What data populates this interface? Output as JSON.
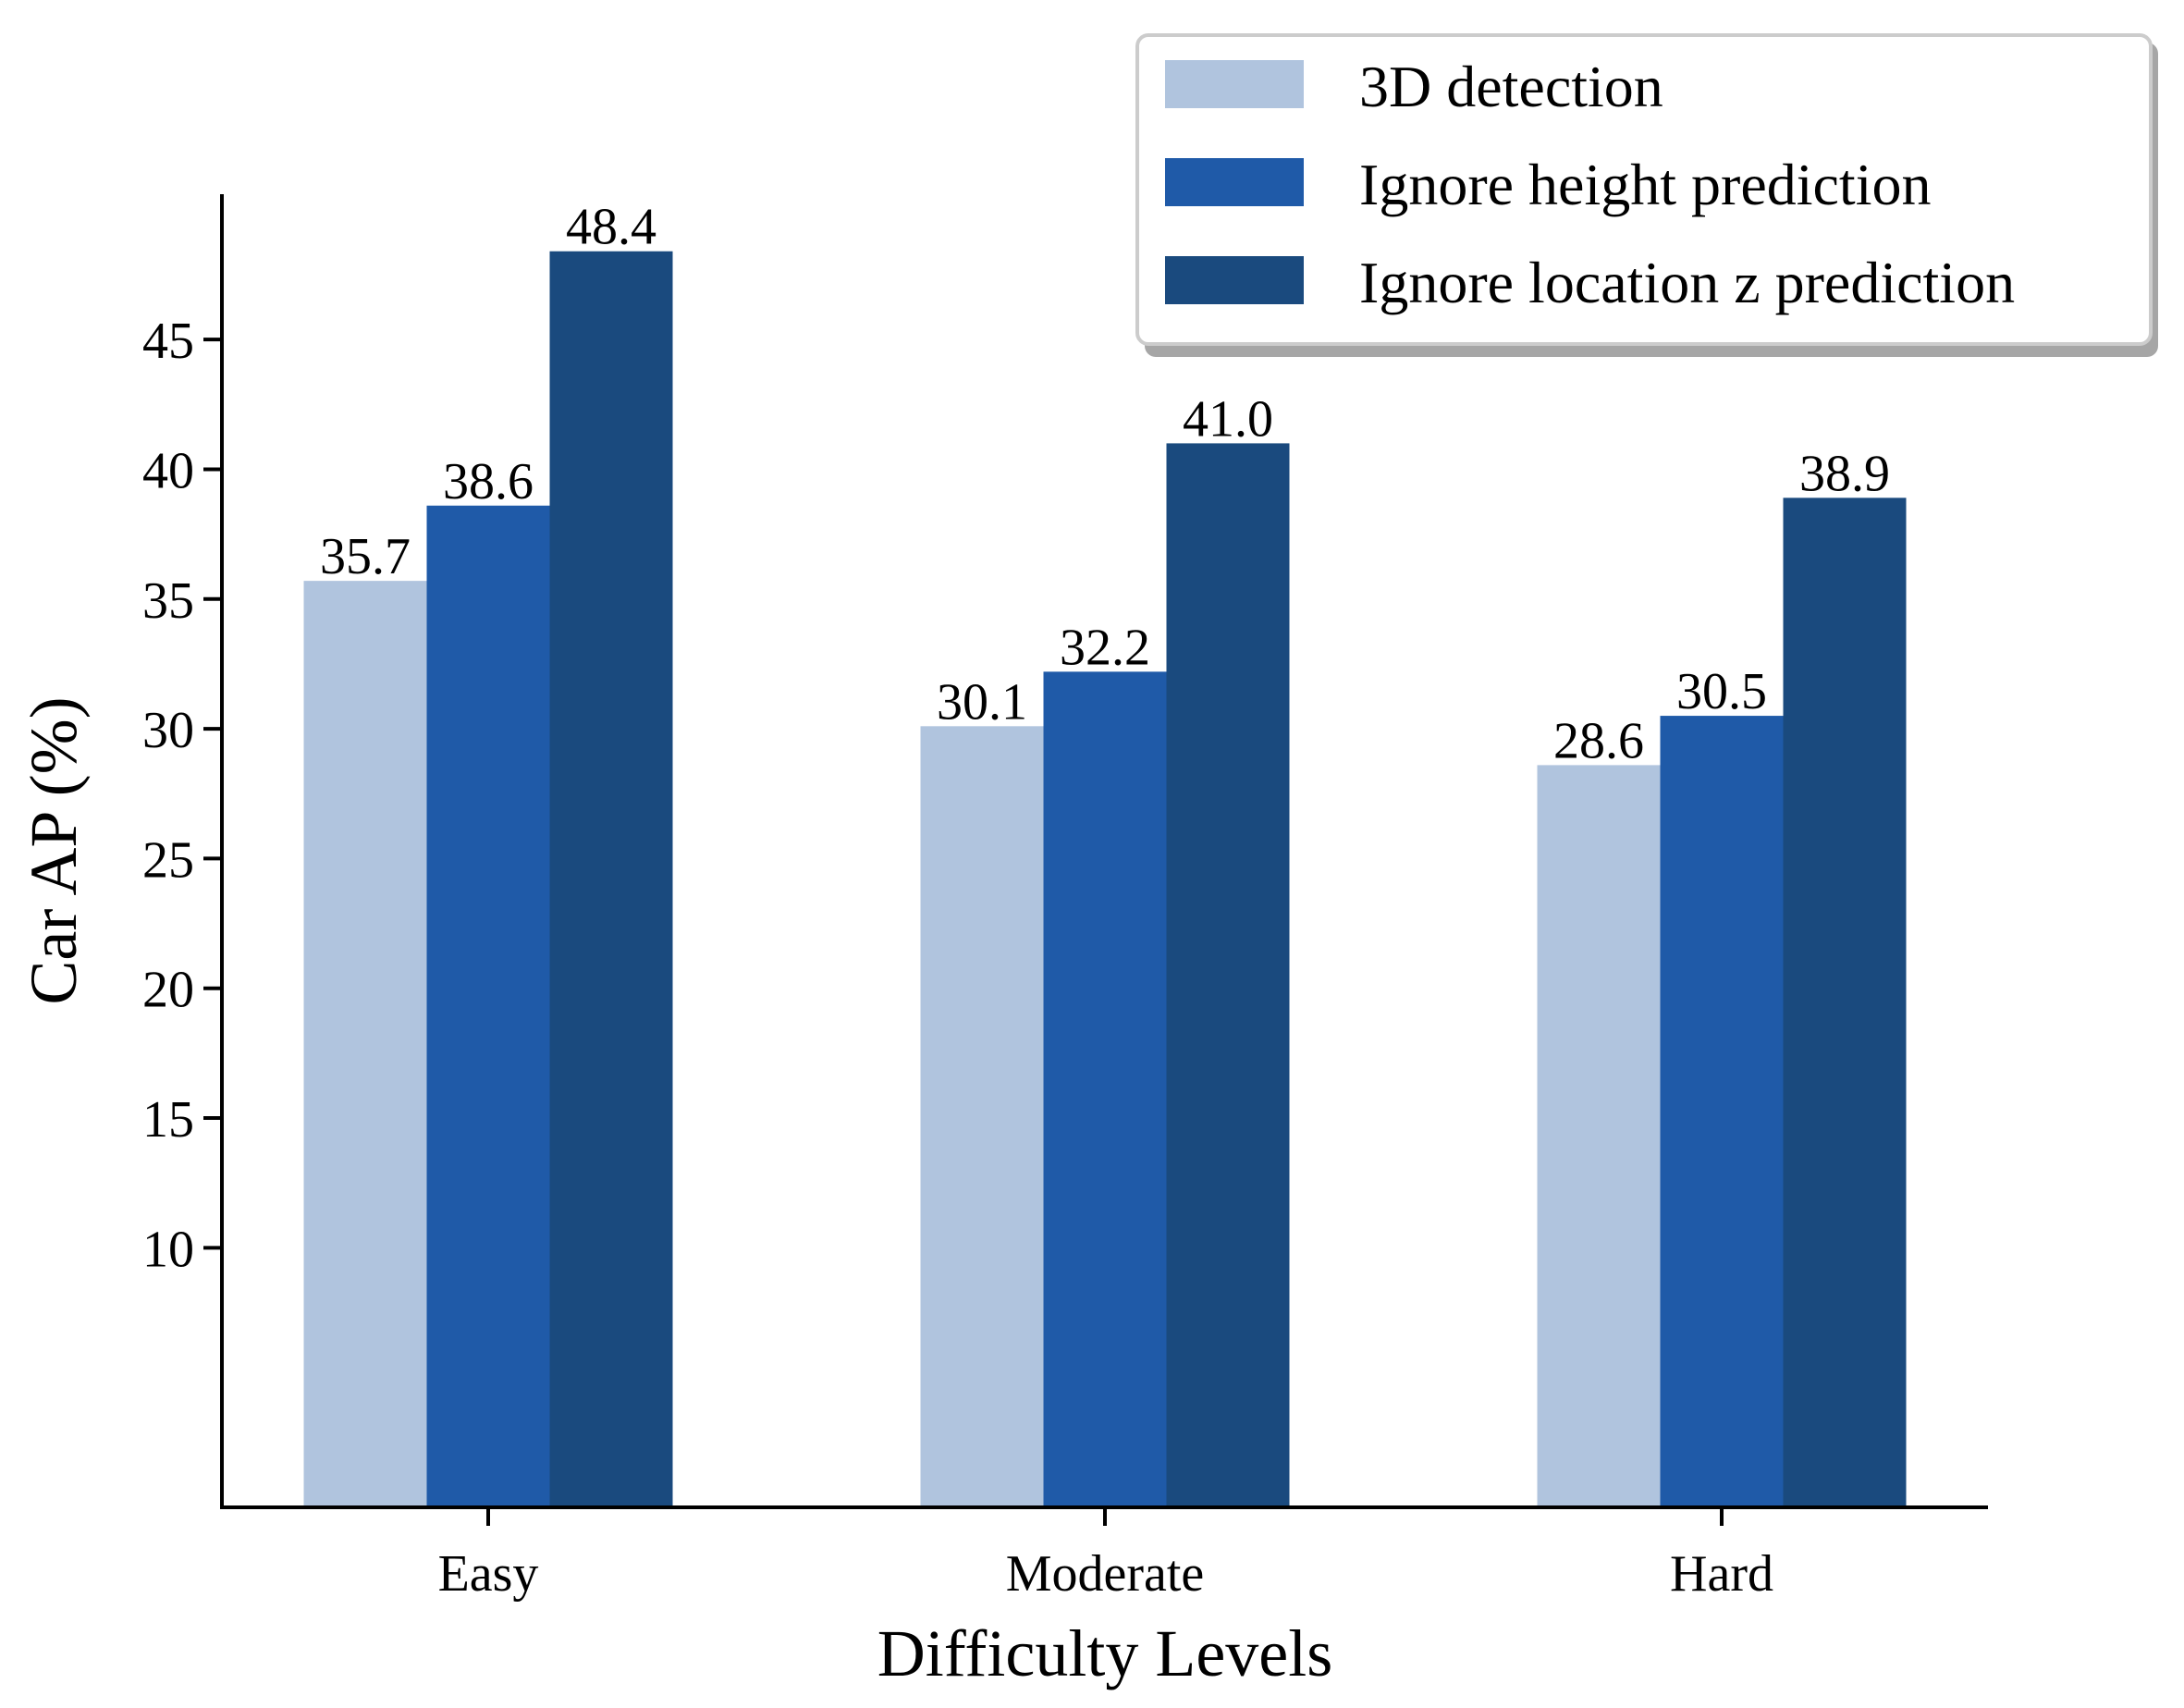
{
  "chart_data": {
    "type": "bar",
    "title": "",
    "xlabel": "Difficulty Levels",
    "ylabel": "Car AP (%)",
    "ylim": [
      0,
      50.6
    ],
    "yticks": [
      10,
      15,
      20,
      25,
      30,
      35,
      40,
      45
    ],
    "categories": [
      "Easy",
      "Moderate",
      "Hard"
    ],
    "series": [
      {
        "name": "3D detection",
        "values": [
          35.7,
          30.1,
          28.6
        ],
        "value_labels": [
          "35.7",
          "30.1",
          "28.6"
        ],
        "color": "#b0c4de"
      },
      {
        "name": "Ignore height prediction",
        "values": [
          38.6,
          32.2,
          30.5
        ],
        "value_labels": [
          "38.6",
          "32.2",
          "30.5"
        ],
        "color": "#1f5aa8"
      },
      {
        "name": "Ignore location z prediction",
        "values": [
          48.4,
          41.0,
          38.9
        ],
        "value_labels": [
          "48.4",
          "41.0",
          "38.9"
        ],
        "color": "#1a4a7e"
      }
    ],
    "legend_position": "top-right",
    "grid": false
  }
}
